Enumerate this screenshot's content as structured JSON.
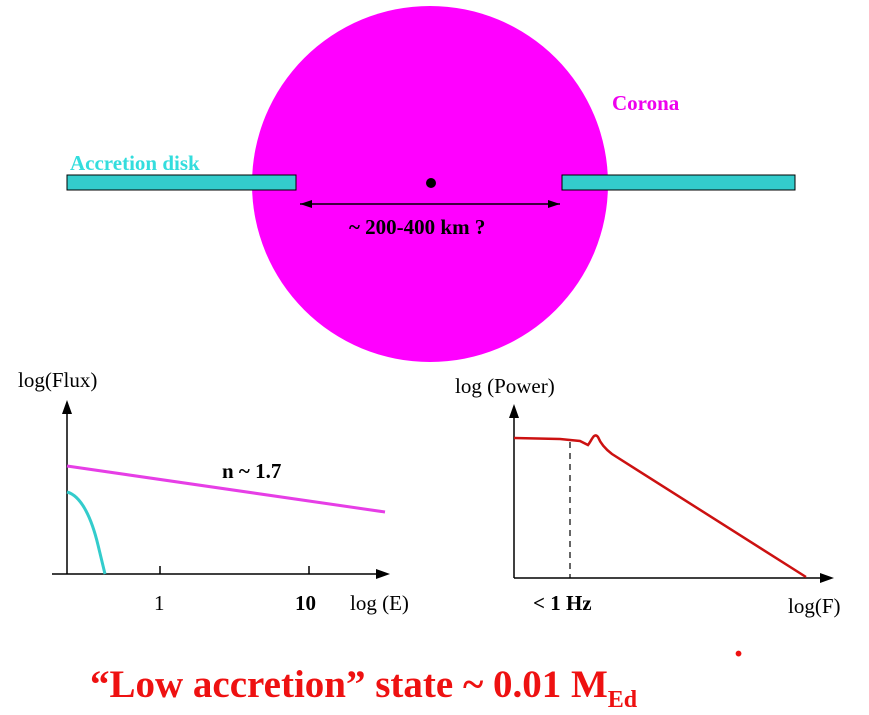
{
  "colors": {
    "corona": "#ff00ff",
    "disk": "#33cccc",
    "disk_label": "#33dddd",
    "corona_label": "#ee00ee",
    "spectrum_line": "#e63ee6",
    "power_line": "#cc1111",
    "caption": "#ee1111"
  },
  "geometry_labels": {
    "corona_label": "Corona",
    "disk_label": "Accretion disk",
    "distance_label": "~ 200-400 km ?"
  },
  "spectrum_plot": {
    "ylabel": "log(Flux)",
    "xlabel": "log (E)",
    "ticks": [
      "1",
      "10"
    ],
    "slope_label": "n ~ 1.7"
  },
  "power_plot": {
    "ylabel": "log (Power)",
    "xlabel": "log(F)",
    "break_label": "< 1 Hz"
  },
  "caption": {
    "text": "“Low accretion” state  ~ 0.01  ",
    "mdot": "M",
    "mdot_dot": "˙",
    "subscript": "Ed"
  }
}
